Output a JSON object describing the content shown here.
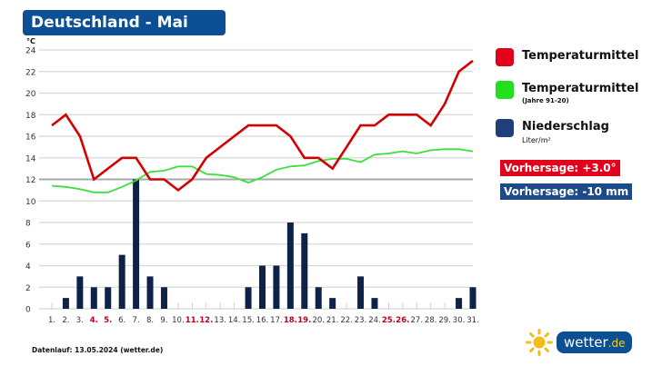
{
  "header": {
    "title": "Deutschland - Mai"
  },
  "legend": {
    "items": [
      {
        "label": "Temperaturmittel",
        "sub": "",
        "color": "#e3001b"
      },
      {
        "label": "Temperaturmittel",
        "sub": "(Jahre 91-20)",
        "color": "#22e01e"
      },
      {
        "label": "Niederschlag",
        "sub": "Liter/m²",
        "color": "#1e3f7a"
      }
    ],
    "forecast_temp": {
      "label": "Vorhersage: +3.0°",
      "color": "#e3001b"
    },
    "forecast_precip": {
      "label": "Vorhersage: -10 mm",
      "color": "#1e4a8a"
    }
  },
  "footer": {
    "text": "Datenlauf: 13.05.2024 (wetter.de)"
  },
  "logo": {
    "name": "wetter",
    "tld": ".de"
  },
  "chart_data": {
    "type": "line+bar",
    "title": "Deutschland - Mai",
    "ylabel": "°C",
    "ylim": [
      0,
      24
    ],
    "yticks": [
      0,
      2,
      4,
      6,
      8,
      10,
      12,
      14,
      16,
      18,
      20,
      22,
      24
    ],
    "grid": true,
    "legend_position": "right",
    "categories": [
      "1.",
      "2.",
      "3.",
      "4.",
      "5.",
      "6.",
      "7.",
      "8.",
      "9.",
      "10.",
      "11.",
      "12.",
      "13.",
      "14.",
      "15.",
      "16.",
      "17.",
      "18.",
      "19.",
      "20.",
      "21.",
      "22.",
      "23.",
      "24.",
      "25.",
      "26.",
      "27.",
      "28.",
      "29.",
      "30.",
      "31."
    ],
    "highlighted_days": [
      4,
      5,
      11,
      12,
      18,
      19,
      25,
      26
    ],
    "highlight_color": "#c0001a",
    "series": [
      {
        "name": "Temperaturmittel",
        "type": "line",
        "color": "#d40000",
        "values": [
          17,
          18,
          16,
          12,
          13,
          14,
          14,
          12,
          12,
          11,
          12,
          14,
          15,
          16,
          17,
          17,
          17,
          16,
          14,
          14,
          13,
          15,
          17,
          17,
          18,
          18,
          18,
          17,
          19,
          22,
          23
        ]
      },
      {
        "name": "Temperaturmittel (Jahre 91-20)",
        "type": "line",
        "color": "#3ce03a",
        "values": [
          11.4,
          11.3,
          11.1,
          10.8,
          10.8,
          11.3,
          11.9,
          12.7,
          12.8,
          13.2,
          13.2,
          12.5,
          12.4,
          12.2,
          11.7,
          12.2,
          12.9,
          13.2,
          13.3,
          13.7,
          13.9,
          13.9,
          13.6,
          14.3,
          14.4,
          14.6,
          14.4,
          14.7,
          14.8,
          14.8,
          14.6
        ]
      },
      {
        "name": "Niederschlag (Liter/m²)",
        "type": "bar",
        "color": "#0e2248",
        "values": [
          0,
          1,
          3,
          2,
          2,
          5,
          12,
          3,
          2,
          0,
          0,
          0,
          0,
          0,
          2,
          4,
          4,
          8,
          7,
          2,
          1,
          0,
          3,
          1,
          0,
          0,
          0,
          0,
          0,
          1,
          2
        ]
      }
    ]
  }
}
